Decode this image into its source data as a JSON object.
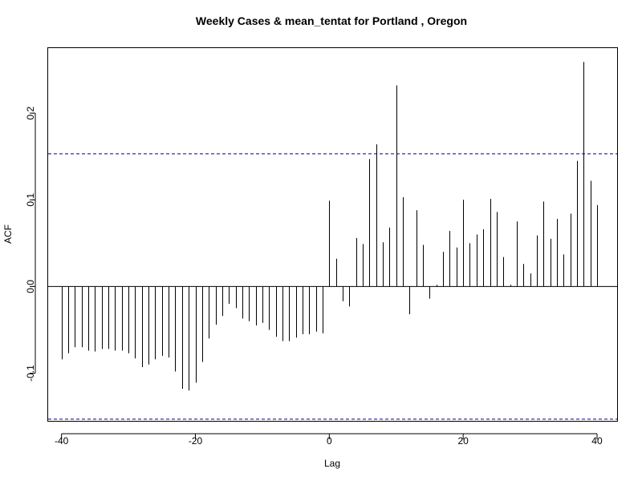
{
  "chart_data": {
    "type": "bar",
    "title": "Weekly Cases & mean_tentat for Portland , Oregon",
    "xlabel": "Lag",
    "ylabel": "ACF",
    "xlim": [
      -42,
      43
    ],
    "ylim": [
      -0.155,
      0.275
    ],
    "x_ticks": [
      -40,
      -20,
      0,
      20,
      40
    ],
    "x_tick_labels": [
      "-40",
      "-20",
      "0",
      "20",
      "40"
    ],
    "y_ticks": [
      -0.1,
      0.0,
      0.1,
      0.2
    ],
    "y_tick_labels": [
      "-0.1",
      "0.0",
      "0.1",
      "0.2"
    ],
    "confidence_bound": 0.153,
    "colors": {
      "bars": "#000000",
      "ci": "#00008b",
      "zero_line": "#000000"
    },
    "x": [
      -40,
      -39,
      -38,
      -37,
      -36,
      -35,
      -34,
      -33,
      -32,
      -31,
      -30,
      -29,
      -28,
      -27,
      -26,
      -25,
      -24,
      -23,
      -22,
      -21,
      -20,
      -19,
      -18,
      -17,
      -16,
      -15,
      -14,
      -13,
      -12,
      -11,
      -10,
      -9,
      -8,
      -7,
      -6,
      -5,
      -4,
      -3,
      -2,
      -1,
      0,
      1,
      2,
      3,
      4,
      5,
      6,
      7,
      8,
      9,
      10,
      11,
      12,
      13,
      14,
      15,
      16,
      17,
      18,
      19,
      20,
      21,
      22,
      23,
      24,
      25,
      26,
      27,
      28,
      29,
      30,
      31,
      32,
      33,
      34,
      35,
      36,
      37,
      38,
      39,
      40
    ],
    "values": [
      -0.084,
      -0.077,
      -0.07,
      -0.07,
      -0.074,
      -0.075,
      -0.072,
      -0.072,
      -0.074,
      -0.074,
      -0.077,
      -0.083,
      -0.093,
      -0.09,
      -0.084,
      -0.08,
      -0.082,
      -0.098,
      -0.118,
      -0.12,
      -0.111,
      -0.087,
      -0.06,
      -0.044,
      -0.034,
      -0.02,
      -0.025,
      -0.037,
      -0.04,
      -0.045,
      -0.042,
      -0.05,
      -0.058,
      -0.063,
      -0.063,
      -0.059,
      -0.055,
      -0.055,
      -0.052,
      -0.054,
      0.099,
      0.032,
      -0.017,
      -0.023,
      0.056,
      0.049,
      0.147,
      0.164,
      0.051,
      0.068,
      0.232,
      0.103,
      -0.032,
      0.088,
      0.048,
      -0.014,
      0.002,
      0.04,
      0.064,
      0.045,
      0.1,
      0.05,
      0.06,
      0.066,
      0.101,
      0.086,
      0.034,
      0.002,
      0.075,
      0.026,
      0.015,
      0.059,
      0.098,
      0.055,
      0.078,
      0.037,
      0.084,
      0.145,
      0.259,
      0.122,
      0.094
    ]
  }
}
